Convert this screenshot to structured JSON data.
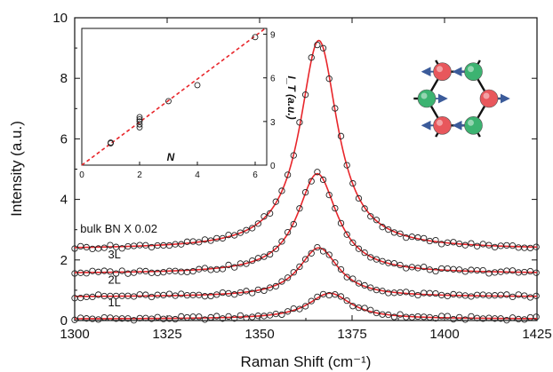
{
  "chart_data": [
    {
      "type": "line",
      "xlabel": "Raman Shift (cm⁻¹)",
      "ylabel": "Intensity (a.u.)",
      "xlim": [
        1300,
        1425
      ],
      "ylim": [
        0,
        10
      ],
      "x_ticks": [
        "1300",
        "1325",
        "1350",
        "1375",
        "1400",
        "1425"
      ],
      "y_ticks": [
        "0",
        "2",
        "4",
        "6",
        "8",
        "10"
      ],
      "line_color": "#e8262b",
      "marker": "open-circle",
      "series": [
        {
          "name": "1L",
          "baseline": 0.05,
          "center": 1369,
          "amplitude": 0.85,
          "width": 7.0
        },
        {
          "name": "2L",
          "baseline": 0.78,
          "center": 1366,
          "amplitude": 1.62,
          "width": 6.5
        },
        {
          "name": "3L",
          "baseline": 1.55,
          "center": 1365.6,
          "amplitude": 3.3,
          "width": 6.5
        },
        {
          "name": "bulk BN X 0.02",
          "baseline": 2.35,
          "center": 1366,
          "amplitude": 6.9,
          "width": 6.2
        }
      ]
    },
    {
      "type": "scatter",
      "position": "inset-top-left",
      "xlabel": "N",
      "ylabel": "I_T (a.u.)",
      "xlim": [
        0,
        6.4
      ],
      "ylim": [
        0,
        9.4
      ],
      "x_ticks": [
        "0",
        "2",
        "4",
        "6"
      ],
      "y_ticks": [
        "0",
        "3",
        "6",
        "9"
      ],
      "points": [
        {
          "x": 1,
          "y": 1.5
        },
        {
          "x": 1,
          "y": 1.55
        },
        {
          "x": 2,
          "y": 2.6
        },
        {
          "x": 2,
          "y": 2.8
        },
        {
          "x": 2,
          "y": 3.0
        },
        {
          "x": 2,
          "y": 3.15
        },
        {
          "x": 2,
          "y": 3.3
        },
        {
          "x": 3,
          "y": 4.4
        },
        {
          "x": 4,
          "y": 5.5
        },
        {
          "x": 6,
          "y": 8.8
        }
      ],
      "fit": {
        "slope": 1.48,
        "intercept": 0,
        "style": "dashed",
        "color": "#e8262b"
      }
    }
  ],
  "hexagon_diagram": {
    "atom_colors": [
      "#e8575c",
      "#3cb371"
    ],
    "bond_color": "#111111",
    "arrow_color": "#3b5b9a"
  }
}
